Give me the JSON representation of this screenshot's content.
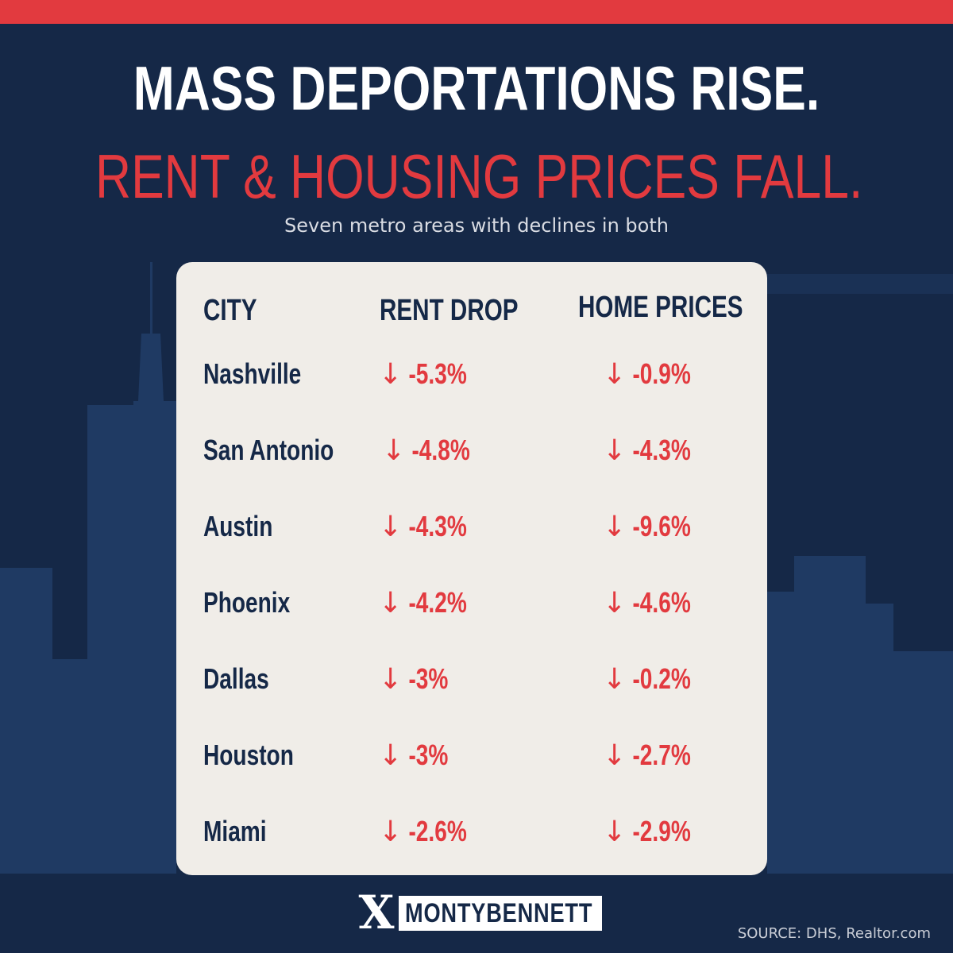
{
  "headline": {
    "line1": "MASS DEPORTATIONS RISE.",
    "line2": "RENT & HOUSING PRICES FALL.",
    "subtitle": "Seven metro areas with declines in both"
  },
  "colors": {
    "background": "#152847",
    "accent_red": "#e23a3f",
    "panel": "#f0ede8",
    "navy_text": "#152847"
  },
  "chart_data": {
    "type": "table",
    "columns": [
      "CITY",
      "RENT DROP",
      "HOME PRICES"
    ],
    "rows": [
      {
        "city": "Nashville",
        "rent": "-5.3%",
        "home": "-0.9%"
      },
      {
        "city": "San Antonio",
        "rent": "-4.8%",
        "home": "-4.3%"
      },
      {
        "city": "Austin",
        "rent": "-4.3%",
        "home": "-9.6%"
      },
      {
        "city": "Phoenix",
        "rent": "-4.2%",
        "home": "-4.6%"
      },
      {
        "city": "Dallas",
        "rent": "-3%",
        "home": "-0.2%"
      },
      {
        "city": "Houston",
        "rent": "-3%",
        "home": "-2.7%"
      },
      {
        "city": "Miami",
        "rent": "-2.6%",
        "home": "-2.9%"
      }
    ],
    "arrow": "↓"
  },
  "brand": {
    "logo_mark": "X",
    "name": "MONTYBENNETT"
  },
  "source": "SOURCE: DHS, Realtor.com"
}
